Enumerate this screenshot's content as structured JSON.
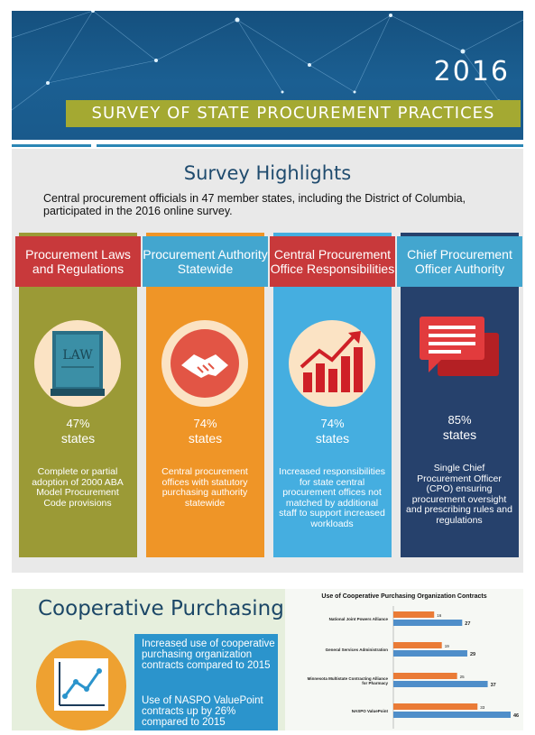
{
  "header": {
    "year": "2016",
    "banner": "SURVEY OF STATE PROCUREMENT PRACTICES"
  },
  "highlights": {
    "title": "Survey Highlights",
    "intro": "Central procurement officials in 47 member states, including the District of Columbia, participated in the 2016 online survey.",
    "columns": [
      {
        "title": "Procurement Laws and Regulations",
        "percent": "47%",
        "unit": "states",
        "description": "Complete or partial adoption of 2000 ABA Model Procurement Code provisions",
        "icon": "law-book-icon",
        "color": "#9b9a36",
        "head_color": "#c8393b"
      },
      {
        "title": "Procurement Authority Statewide",
        "percent": "74%",
        "unit": "states",
        "description": "Central procurement offices with statutory purchasing authority statewide",
        "icon": "handshake-icon",
        "color": "#ef9527",
        "head_color": "#43a6cf"
      },
      {
        "title": "Central Procurement Office Responsibilities",
        "percent": "74%",
        "unit": "states",
        "description": "Increased responsibilities for state central procurement offices not matched by additional staff to support increased workloads",
        "icon": "growth-chart-icon",
        "color": "#45aee0",
        "head_color": "#c8393b"
      },
      {
        "title": "Chief Procurement Officer Authority",
        "percent": "85%",
        "unit": "states",
        "description": "Single Chief Procurement Officer (CPO) ensuring procurement oversight and prescribing rules and regulations",
        "icon": "speech-bubbles-icon",
        "color": "#26416c",
        "head_color": "#43a6cf"
      }
    ]
  },
  "coop": {
    "title": "Cooperative Purchasing",
    "icon": "line-chart-icon",
    "text1": "Increased use of cooperative purchasing organization contracts compared to 2015",
    "text2": "Use of NASPO ValuePoint contracts up by 26% compared to 2015"
  },
  "chart_data": {
    "type": "bar",
    "title": "Use of Cooperative Purchasing Organization Contracts",
    "categories": [
      "National Joint Powers Alliance",
      "General Services Administration",
      "Minnesota Multistate Contracting Alliance for Pharmacy",
      "NASPO ValuePoint"
    ],
    "series": [
      {
        "values": [
          16,
          19,
          25,
          33
        ],
        "color": "#ea7b36"
      },
      {
        "values": [
          27,
          29,
          37,
          46
        ],
        "color": "#4f8ec9"
      }
    ],
    "xlim": [
      0,
      46
    ],
    "orientation": "horizontal"
  }
}
